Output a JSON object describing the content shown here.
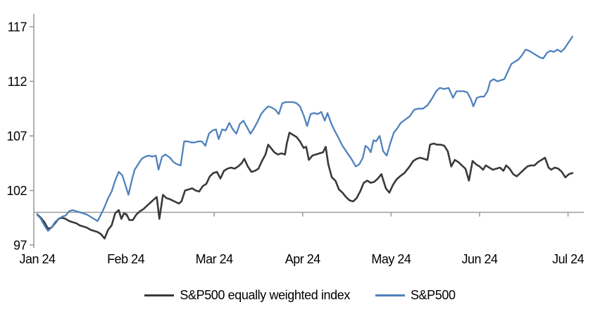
{
  "page": {
    "background": "#ffffff"
  },
  "chart_data": {
    "type": "line",
    "title": "",
    "xlabel": "",
    "ylabel": "",
    "grid": "off",
    "legend_position": "bottom-center",
    "x_axis": {
      "unit": "months-from-Jan-2024",
      "tick_labels": [
        "Jan 24",
        "Feb 24",
        "Mar 24",
        "Apr 24",
        "May 24",
        "Jun 24",
        "Jul 24"
      ],
      "tick_positions": [
        0,
        1,
        2,
        3,
        4,
        5,
        6
      ],
      "domain": [
        0,
        6.18
      ]
    },
    "y_axis": {
      "ticks": [
        97,
        102,
        107,
        112,
        117
      ],
      "tick_labels": [
        "97",
        "102",
        "107",
        "112",
        "117"
      ],
      "range": [
        97,
        118.3
      ]
    },
    "baseline": {
      "value": 100,
      "color": "#9d9d9d"
    },
    "axis_color": "#9d9d9d",
    "text_color": "#000000",
    "series": [
      {
        "name": "S&P500 equally weighted index",
        "color": "#3a3a3a",
        "points": [
          [
            0.0,
            99.8
          ],
          [
            0.04,
            99.5
          ],
          [
            0.08,
            99.1
          ],
          [
            0.12,
            98.5
          ],
          [
            0.16,
            98.6
          ],
          [
            0.2,
            99.0
          ],
          [
            0.24,
            99.4
          ],
          [
            0.28,
            99.5
          ],
          [
            0.32,
            99.4
          ],
          [
            0.36,
            99.2
          ],
          [
            0.4,
            99.1
          ],
          [
            0.44,
            99.0
          ],
          [
            0.48,
            98.8
          ],
          [
            0.52,
            98.7
          ],
          [
            0.56,
            98.6
          ],
          [
            0.6,
            98.4
          ],
          [
            0.64,
            98.3
          ],
          [
            0.68,
            98.2
          ],
          [
            0.72,
            98.0
          ],
          [
            0.76,
            97.6
          ],
          [
            0.8,
            98.4
          ],
          [
            0.84,
            98.8
          ],
          [
            0.88,
            99.9
          ],
          [
            0.92,
            100.2
          ],
          [
            0.95,
            99.4
          ],
          [
            0.98,
            99.9
          ],
          [
            1.01,
            99.8
          ],
          [
            1.04,
            99.3
          ],
          [
            1.08,
            99.3
          ],
          [
            1.12,
            99.8
          ],
          [
            1.16,
            100.1
          ],
          [
            1.2,
            100.3
          ],
          [
            1.24,
            100.6
          ],
          [
            1.28,
            100.9
          ],
          [
            1.32,
            101.2
          ],
          [
            1.35,
            101.4
          ],
          [
            1.38,
            99.4
          ],
          [
            1.42,
            101.6
          ],
          [
            1.46,
            101.3
          ],
          [
            1.5,
            101.2
          ],
          [
            1.55,
            101.0
          ],
          [
            1.6,
            100.8
          ],
          [
            1.63,
            101.0
          ],
          [
            1.67,
            102.0
          ],
          [
            1.71,
            102.1
          ],
          [
            1.75,
            102.2
          ],
          [
            1.79,
            102.0
          ],
          [
            1.83,
            101.9
          ],
          [
            1.87,
            102.4
          ],
          [
            1.91,
            102.6
          ],
          [
            1.95,
            103.3
          ],
          [
            1.99,
            103.6
          ],
          [
            2.03,
            103.7
          ],
          [
            2.07,
            103.1
          ],
          [
            2.11,
            103.8
          ],
          [
            2.15,
            104.0
          ],
          [
            2.19,
            104.1
          ],
          [
            2.23,
            104.0
          ],
          [
            2.27,
            104.2
          ],
          [
            2.31,
            104.5
          ],
          [
            2.34,
            104.9
          ],
          [
            2.38,
            104.2
          ],
          [
            2.42,
            103.7
          ],
          [
            2.46,
            103.8
          ],
          [
            2.5,
            104.0
          ],
          [
            2.54,
            104.7
          ],
          [
            2.58,
            105.3
          ],
          [
            2.61,
            106.2
          ],
          [
            2.64,
            105.9
          ],
          [
            2.68,
            105.5
          ],
          [
            2.72,
            105.3
          ],
          [
            2.76,
            105.4
          ],
          [
            2.8,
            105.3
          ],
          [
            2.82,
            106.3
          ],
          [
            2.85,
            107.3
          ],
          [
            2.89,
            107.1
          ],
          [
            2.93,
            106.9
          ],
          [
            2.97,
            106.5
          ],
          [
            3.01,
            105.9
          ],
          [
            3.04,
            106.0
          ],
          [
            3.07,
            104.8
          ],
          [
            3.11,
            105.2
          ],
          [
            3.15,
            105.3
          ],
          [
            3.19,
            105.4
          ],
          [
            3.23,
            105.5
          ],
          [
            3.26,
            106.0
          ],
          [
            3.29,
            104.4
          ],
          [
            3.33,
            103.2
          ],
          [
            3.37,
            102.9
          ],
          [
            3.41,
            102.1
          ],
          [
            3.45,
            101.8
          ],
          [
            3.49,
            101.4
          ],
          [
            3.53,
            101.1
          ],
          [
            3.57,
            101.0
          ],
          [
            3.61,
            101.3
          ],
          [
            3.65,
            101.9
          ],
          [
            3.69,
            102.7
          ],
          [
            3.73,
            102.9
          ],
          [
            3.77,
            102.7
          ],
          [
            3.81,
            102.8
          ],
          [
            3.85,
            103.1
          ],
          [
            3.89,
            103.5
          ],
          [
            3.94,
            102.2
          ],
          [
            3.98,
            101.8
          ],
          [
            4.02,
            102.5
          ],
          [
            4.06,
            103.0
          ],
          [
            4.1,
            103.3
          ],
          [
            4.15,
            103.6
          ],
          [
            4.2,
            104.1
          ],
          [
            4.25,
            104.7
          ],
          [
            4.29,
            104.9
          ],
          [
            4.33,
            105.0
          ],
          [
            4.37,
            104.9
          ],
          [
            4.41,
            104.8
          ],
          [
            4.44,
            106.2
          ],
          [
            4.48,
            106.3
          ],
          [
            4.52,
            106.2
          ],
          [
            4.56,
            106.2
          ],
          [
            4.6,
            106.1
          ],
          [
            4.64,
            105.6
          ],
          [
            4.68,
            104.2
          ],
          [
            4.72,
            104.8
          ],
          [
            4.76,
            104.6
          ],
          [
            4.8,
            104.3
          ],
          [
            4.84,
            104.0
          ],
          [
            4.88,
            102.9
          ],
          [
            4.92,
            104.7
          ],
          [
            4.96,
            104.4
          ],
          [
            5.0,
            104.2
          ],
          [
            5.04,
            103.9
          ],
          [
            5.07,
            104.3
          ],
          [
            5.11,
            104.1
          ],
          [
            5.15,
            103.9
          ],
          [
            5.19,
            104.0
          ],
          [
            5.23,
            104.1
          ],
          [
            5.27,
            103.8
          ],
          [
            5.3,
            104.3
          ],
          [
            5.34,
            104.0
          ],
          [
            5.38,
            103.5
          ],
          [
            5.42,
            103.3
          ],
          [
            5.46,
            103.6
          ],
          [
            5.5,
            103.9
          ],
          [
            5.54,
            104.2
          ],
          [
            5.58,
            104.3
          ],
          [
            5.62,
            104.3
          ],
          [
            5.66,
            104.6
          ],
          [
            5.7,
            104.8
          ],
          [
            5.74,
            105.0
          ],
          [
            5.78,
            104.1
          ],
          [
            5.81,
            103.9
          ],
          [
            5.85,
            104.1
          ],
          [
            5.89,
            104.0
          ],
          [
            5.93,
            103.7
          ],
          [
            5.97,
            103.2
          ],
          [
            6.01,
            103.5
          ],
          [
            6.05,
            103.6
          ]
        ]
      },
      {
        "name": "S&P500",
        "color": "#4f81bd",
        "points": [
          [
            0.0,
            99.8
          ],
          [
            0.04,
            99.4
          ],
          [
            0.08,
            98.8
          ],
          [
            0.12,
            98.3
          ],
          [
            0.16,
            98.6
          ],
          [
            0.2,
            99.1
          ],
          [
            0.24,
            99.4
          ],
          [
            0.28,
            99.6
          ],
          [
            0.32,
            99.7
          ],
          [
            0.36,
            100.1
          ],
          [
            0.4,
            100.2
          ],
          [
            0.44,
            100.1
          ],
          [
            0.48,
            100.0
          ],
          [
            0.52,
            99.9
          ],
          [
            0.56,
            99.8
          ],
          [
            0.6,
            99.6
          ],
          [
            0.64,
            99.4
          ],
          [
            0.68,
            99.2
          ],
          [
            0.72,
            99.8
          ],
          [
            0.76,
            100.5
          ],
          [
            0.8,
            101.3
          ],
          [
            0.84,
            101.9
          ],
          [
            0.88,
            102.9
          ],
          [
            0.92,
            103.7
          ],
          [
            0.96,
            103.4
          ],
          [
            1.0,
            102.4
          ],
          [
            1.03,
            101.6
          ],
          [
            1.07,
            103.0
          ],
          [
            1.1,
            103.9
          ],
          [
            1.14,
            104.4
          ],
          [
            1.18,
            104.9
          ],
          [
            1.22,
            105.1
          ],
          [
            1.26,
            105.2
          ],
          [
            1.3,
            105.1
          ],
          [
            1.34,
            105.2
          ],
          [
            1.37,
            103.9
          ],
          [
            1.41,
            105.1
          ],
          [
            1.45,
            105.3
          ],
          [
            1.5,
            105.0
          ],
          [
            1.54,
            104.6
          ],
          [
            1.58,
            104.4
          ],
          [
            1.62,
            104.3
          ],
          [
            1.66,
            106.5
          ],
          [
            1.7,
            106.5
          ],
          [
            1.74,
            106.4
          ],
          [
            1.78,
            106.4
          ],
          [
            1.82,
            106.5
          ],
          [
            1.86,
            106.5
          ],
          [
            1.9,
            106.1
          ],
          [
            1.94,
            107.2
          ],
          [
            1.98,
            107.5
          ],
          [
            2.02,
            107.6
          ],
          [
            2.05,
            106.7
          ],
          [
            2.09,
            107.6
          ],
          [
            2.13,
            107.5
          ],
          [
            2.17,
            108.2
          ],
          [
            2.21,
            107.6
          ],
          [
            2.25,
            107.2
          ],
          [
            2.29,
            108.1
          ],
          [
            2.33,
            108.4
          ],
          [
            2.37,
            107.8
          ],
          [
            2.41,
            107.2
          ],
          [
            2.45,
            107.7
          ],
          [
            2.49,
            108.3
          ],
          [
            2.53,
            109.0
          ],
          [
            2.57,
            109.4
          ],
          [
            2.61,
            109.7
          ],
          [
            2.65,
            109.6
          ],
          [
            2.69,
            109.4
          ],
          [
            2.73,
            109.0
          ],
          [
            2.77,
            110.0
          ],
          [
            2.81,
            110.1
          ],
          [
            2.85,
            110.1
          ],
          [
            2.89,
            110.1
          ],
          [
            2.93,
            110.0
          ],
          [
            2.97,
            109.7
          ],
          [
            3.01,
            108.9
          ],
          [
            3.05,
            107.9
          ],
          [
            3.09,
            109.0
          ],
          [
            3.13,
            109.1
          ],
          [
            3.17,
            109.0
          ],
          [
            3.21,
            109.2
          ],
          [
            3.25,
            108.4
          ],
          [
            3.28,
            109.1
          ],
          [
            3.32,
            108.2
          ],
          [
            3.36,
            107.5
          ],
          [
            3.4,
            106.9
          ],
          [
            3.45,
            106.1
          ],
          [
            3.5,
            105.5
          ],
          [
            3.55,
            104.9
          ],
          [
            3.6,
            104.2
          ],
          [
            3.64,
            104.4
          ],
          [
            3.68,
            105.0
          ],
          [
            3.71,
            106.1
          ],
          [
            3.74,
            105.9
          ],
          [
            3.77,
            105.5
          ],
          [
            3.8,
            106.6
          ],
          [
            3.83,
            106.5
          ],
          [
            3.87,
            107.0
          ],
          [
            3.91,
            105.6
          ],
          [
            3.95,
            105.2
          ],
          [
            3.99,
            106.3
          ],
          [
            4.03,
            107.3
          ],
          [
            4.07,
            107.7
          ],
          [
            4.11,
            108.2
          ],
          [
            4.16,
            108.5
          ],
          [
            4.21,
            108.8
          ],
          [
            4.26,
            109.4
          ],
          [
            4.31,
            109.5
          ],
          [
            4.36,
            109.5
          ],
          [
            4.41,
            109.8
          ],
          [
            4.46,
            110.4
          ],
          [
            4.51,
            111.1
          ],
          [
            4.55,
            111.4
          ],
          [
            4.6,
            111.3
          ],
          [
            4.65,
            111.4
          ],
          [
            4.7,
            110.5
          ],
          [
            4.74,
            111.1
          ],
          [
            4.78,
            111.1
          ],
          [
            4.82,
            111.1
          ],
          [
            4.86,
            111.0
          ],
          [
            4.9,
            110.4
          ],
          [
            4.93,
            109.7
          ],
          [
            4.97,
            110.5
          ],
          [
            5.01,
            110.6
          ],
          [
            5.05,
            110.6
          ],
          [
            5.09,
            111.1
          ],
          [
            5.12,
            112.0
          ],
          [
            5.16,
            112.2
          ],
          [
            5.2,
            112.0
          ],
          [
            5.24,
            112.1
          ],
          [
            5.28,
            112.2
          ],
          [
            5.32,
            112.9
          ],
          [
            5.36,
            113.6
          ],
          [
            5.4,
            113.8
          ],
          [
            5.44,
            114.0
          ],
          [
            5.48,
            114.4
          ],
          [
            5.52,
            114.9
          ],
          [
            5.56,
            114.8
          ],
          [
            5.6,
            114.6
          ],
          [
            5.64,
            114.4
          ],
          [
            5.68,
            114.2
          ],
          [
            5.72,
            114.1
          ],
          [
            5.76,
            114.6
          ],
          [
            5.8,
            114.8
          ],
          [
            5.84,
            114.7
          ],
          [
            5.88,
            114.9
          ],
          [
            5.92,
            114.7
          ],
          [
            5.96,
            115.0
          ],
          [
            6.0,
            115.5
          ],
          [
            6.05,
            116.1
          ]
        ]
      }
    ]
  }
}
